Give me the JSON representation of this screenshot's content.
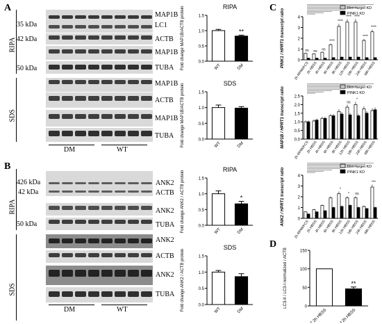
{
  "panels": {
    "A": {
      "letter": "A",
      "conditions": [
        "RIPA",
        "SDS"
      ],
      "groups": [
        "DM",
        "WT"
      ],
      "kda_markers": [
        "35 kDa",
        "42 kDa",
        "50 kDa"
      ],
      "blot_labels": [
        "MAP1B",
        "LC1",
        "ACTB",
        "MAP1B",
        "TUBA",
        "MAP1B",
        "ACTB",
        "MAP1B",
        "TUBA"
      ]
    },
    "B": {
      "letter": "B",
      "conditions": [
        "RIPA",
        "SDS"
      ],
      "groups": [
        "DM",
        "WT"
      ],
      "kda_markers": [
        "426 kDa",
        "42 kDa",
        "50 kDa"
      ],
      "blot_labels": [
        "ANK2",
        "ACTB",
        "ANK2",
        "TUBA",
        "ANK2",
        "ACTB",
        "ANK2",
        "TUBA"
      ]
    },
    "C": {
      "letter": "C"
    },
    "D": {
      "letter": "D"
    }
  },
  "chart_data": [
    {
      "id": "A-ripa",
      "type": "bar",
      "title": "RIPA",
      "ylabel": "Fold change MAP1B/ACTB protein",
      "categories": [
        "WT",
        "DM"
      ],
      "values": [
        1.0,
        0.82
      ],
      "errors": [
        0.04,
        0.03
      ],
      "colors": [
        "#ffffff",
        "#000000"
      ],
      "significance": [
        "",
        "**"
      ],
      "ylim": [
        0,
        1.5
      ],
      "yticks": [
        "0.0",
        "0.5",
        "1.0",
        "1.5"
      ]
    },
    {
      "id": "A-sds",
      "type": "bar",
      "title": "SDS",
      "ylabel": "Fold change MAP1B/ACTB protein",
      "categories": [
        "WT",
        "DM"
      ],
      "values": [
        1.0,
        0.98
      ],
      "errors": [
        0.08,
        0.05
      ],
      "colors": [
        "#ffffff",
        "#000000"
      ],
      "significance": [
        "",
        ""
      ],
      "ylim": [
        0,
        1.5
      ],
      "yticks": [
        "0.0",
        "0.5",
        "1.0",
        "1.5"
      ]
    },
    {
      "id": "B-ripa",
      "type": "bar",
      "title": "RIPA",
      "ylabel": "Fold change ANK2 / ACTB protein",
      "categories": [
        "WT",
        "DM"
      ],
      "values": [
        1.0,
        0.68
      ],
      "errors": [
        0.09,
        0.08
      ],
      "colors": [
        "#ffffff",
        "#000000"
      ],
      "significance": [
        "",
        "*"
      ],
      "ylim": [
        0,
        1.5
      ],
      "yticks": [
        "0.0",
        "0.5",
        "1.0",
        "1.5"
      ]
    },
    {
      "id": "B-sds",
      "type": "bar",
      "title": "SDS",
      "ylabel": "Fold change ANK2 / ACTB protein",
      "categories": [
        "WT",
        "DM"
      ],
      "values": [
        1.0,
        0.86
      ],
      "errors": [
        0.05,
        0.09
      ],
      "colors": [
        "#ffffff",
        "#000000"
      ],
      "significance": [
        "",
        ""
      ],
      "ylim": [
        0,
        1.5
      ],
      "yticks": [
        "0.0",
        "0.5",
        "1.0",
        "1.5"
      ]
    },
    {
      "id": "C-pink1",
      "type": "bar",
      "ylabel": "PINK1 / HPRT1 transcript ratio",
      "categories": [
        "2h RPMI/FCS",
        "2h HBSS",
        "4h HBSS",
        "6h HBSS",
        "8h HBSS",
        "12h HBSS",
        "18h HBSS",
        "24h HBSS",
        "48h HBSS"
      ],
      "series": [
        {
          "name": "Non-target KD",
          "color": "#ffffff",
          "values": [
            0.6,
            0.55,
            0.7,
            1.4,
            3.1,
            3.5,
            3.5,
            1.8,
            2.6
          ]
        },
        {
          "name": "PINK1 KD",
          "color": "#000000",
          "values": [
            0.15,
            0.15,
            0.15,
            0.2,
            0.25,
            0.25,
            0.25,
            0.2,
            0.2
          ]
        }
      ],
      "significance": [
        "ns",
        "ns",
        "ns",
        "****",
        "****",
        "****",
        "****",
        "****",
        "****"
      ],
      "ylim": [
        0,
        4
      ],
      "yticks": [
        "0",
        "1",
        "2",
        "3",
        "4"
      ]
    },
    {
      "id": "C-map1b",
      "type": "bar",
      "ylabel": "MAP1B / HPRT1 transcript ratio",
      "categories": [
        "2h RPMI/FCS",
        "2h HBSS",
        "4h HBSS",
        "6h HBSS",
        "8h HBSS",
        "12h HBSS",
        "18h HBSS",
        "24h HBSS",
        "48h HBSS"
      ],
      "series": [
        {
          "name": "Non-target KD",
          "color": "#ffffff",
          "values": [
            1.0,
            1.05,
            1.2,
            1.35,
            1.6,
            1.85,
            2.0,
            1.75,
            1.65
          ]
        },
        {
          "name": "PINK1 KD",
          "color": "#000000",
          "values": [
            1.0,
            1.1,
            1.2,
            1.35,
            1.45,
            1.4,
            1.35,
            1.5,
            1.7
          ]
        }
      ],
      "significance": [
        "",
        "",
        "",
        "",
        "",
        "ns",
        "*",
        "",
        ""
      ],
      "ylim": [
        0,
        2.5
      ],
      "yticks": [
        "0.0",
        "0.5",
        "1.0",
        "1.5",
        "2.0",
        "2.5"
      ]
    },
    {
      "id": "C-ank2",
      "type": "bar",
      "ylabel": "ANK2 / HPRT1 transcript ratio",
      "categories": [
        "2h RPMI/FCS",
        "2h HBSS",
        "4h HBSS",
        "6h HBSS",
        "8h HBSS",
        "12h HBSS",
        "18h HBSS",
        "24h HBSS",
        "48h HBSS"
      ],
      "series": [
        {
          "name": "Non-target KD",
          "color": "#ffffff",
          "values": [
            0.6,
            0.8,
            1.2,
            1.9,
            2.3,
            1.9,
            1.9,
            1.1,
            2.9
          ]
        },
        {
          "name": "PINK1 KD",
          "color": "#000000",
          "values": [
            0.4,
            0.6,
            0.7,
            1.0,
            1.1,
            1.2,
            1.0,
            0.9,
            1.0
          ]
        }
      ],
      "significance": [
        "",
        "",
        "",
        "",
        "*",
        "*",
        "ns",
        "",
        "***"
      ],
      "ylim": [
        0,
        4
      ],
      "yticks": [
        "0",
        "1",
        "2",
        "3",
        "4"
      ]
    },
    {
      "id": "D",
      "type": "bar",
      "ylabel": "LC3-II / LC3-I normalized / ACTB",
      "categories": [
        "WT 2h HBSS",
        "DM 2h HBSS"
      ],
      "values": [
        100,
        46
      ],
      "errors": [
        0,
        5
      ],
      "colors": [
        "#ffffff",
        "#000000"
      ],
      "significance": [
        "",
        "**"
      ],
      "ylim": [
        0,
        150
      ],
      "yticks": [
        "0",
        "50",
        "100",
        "150"
      ]
    }
  ]
}
